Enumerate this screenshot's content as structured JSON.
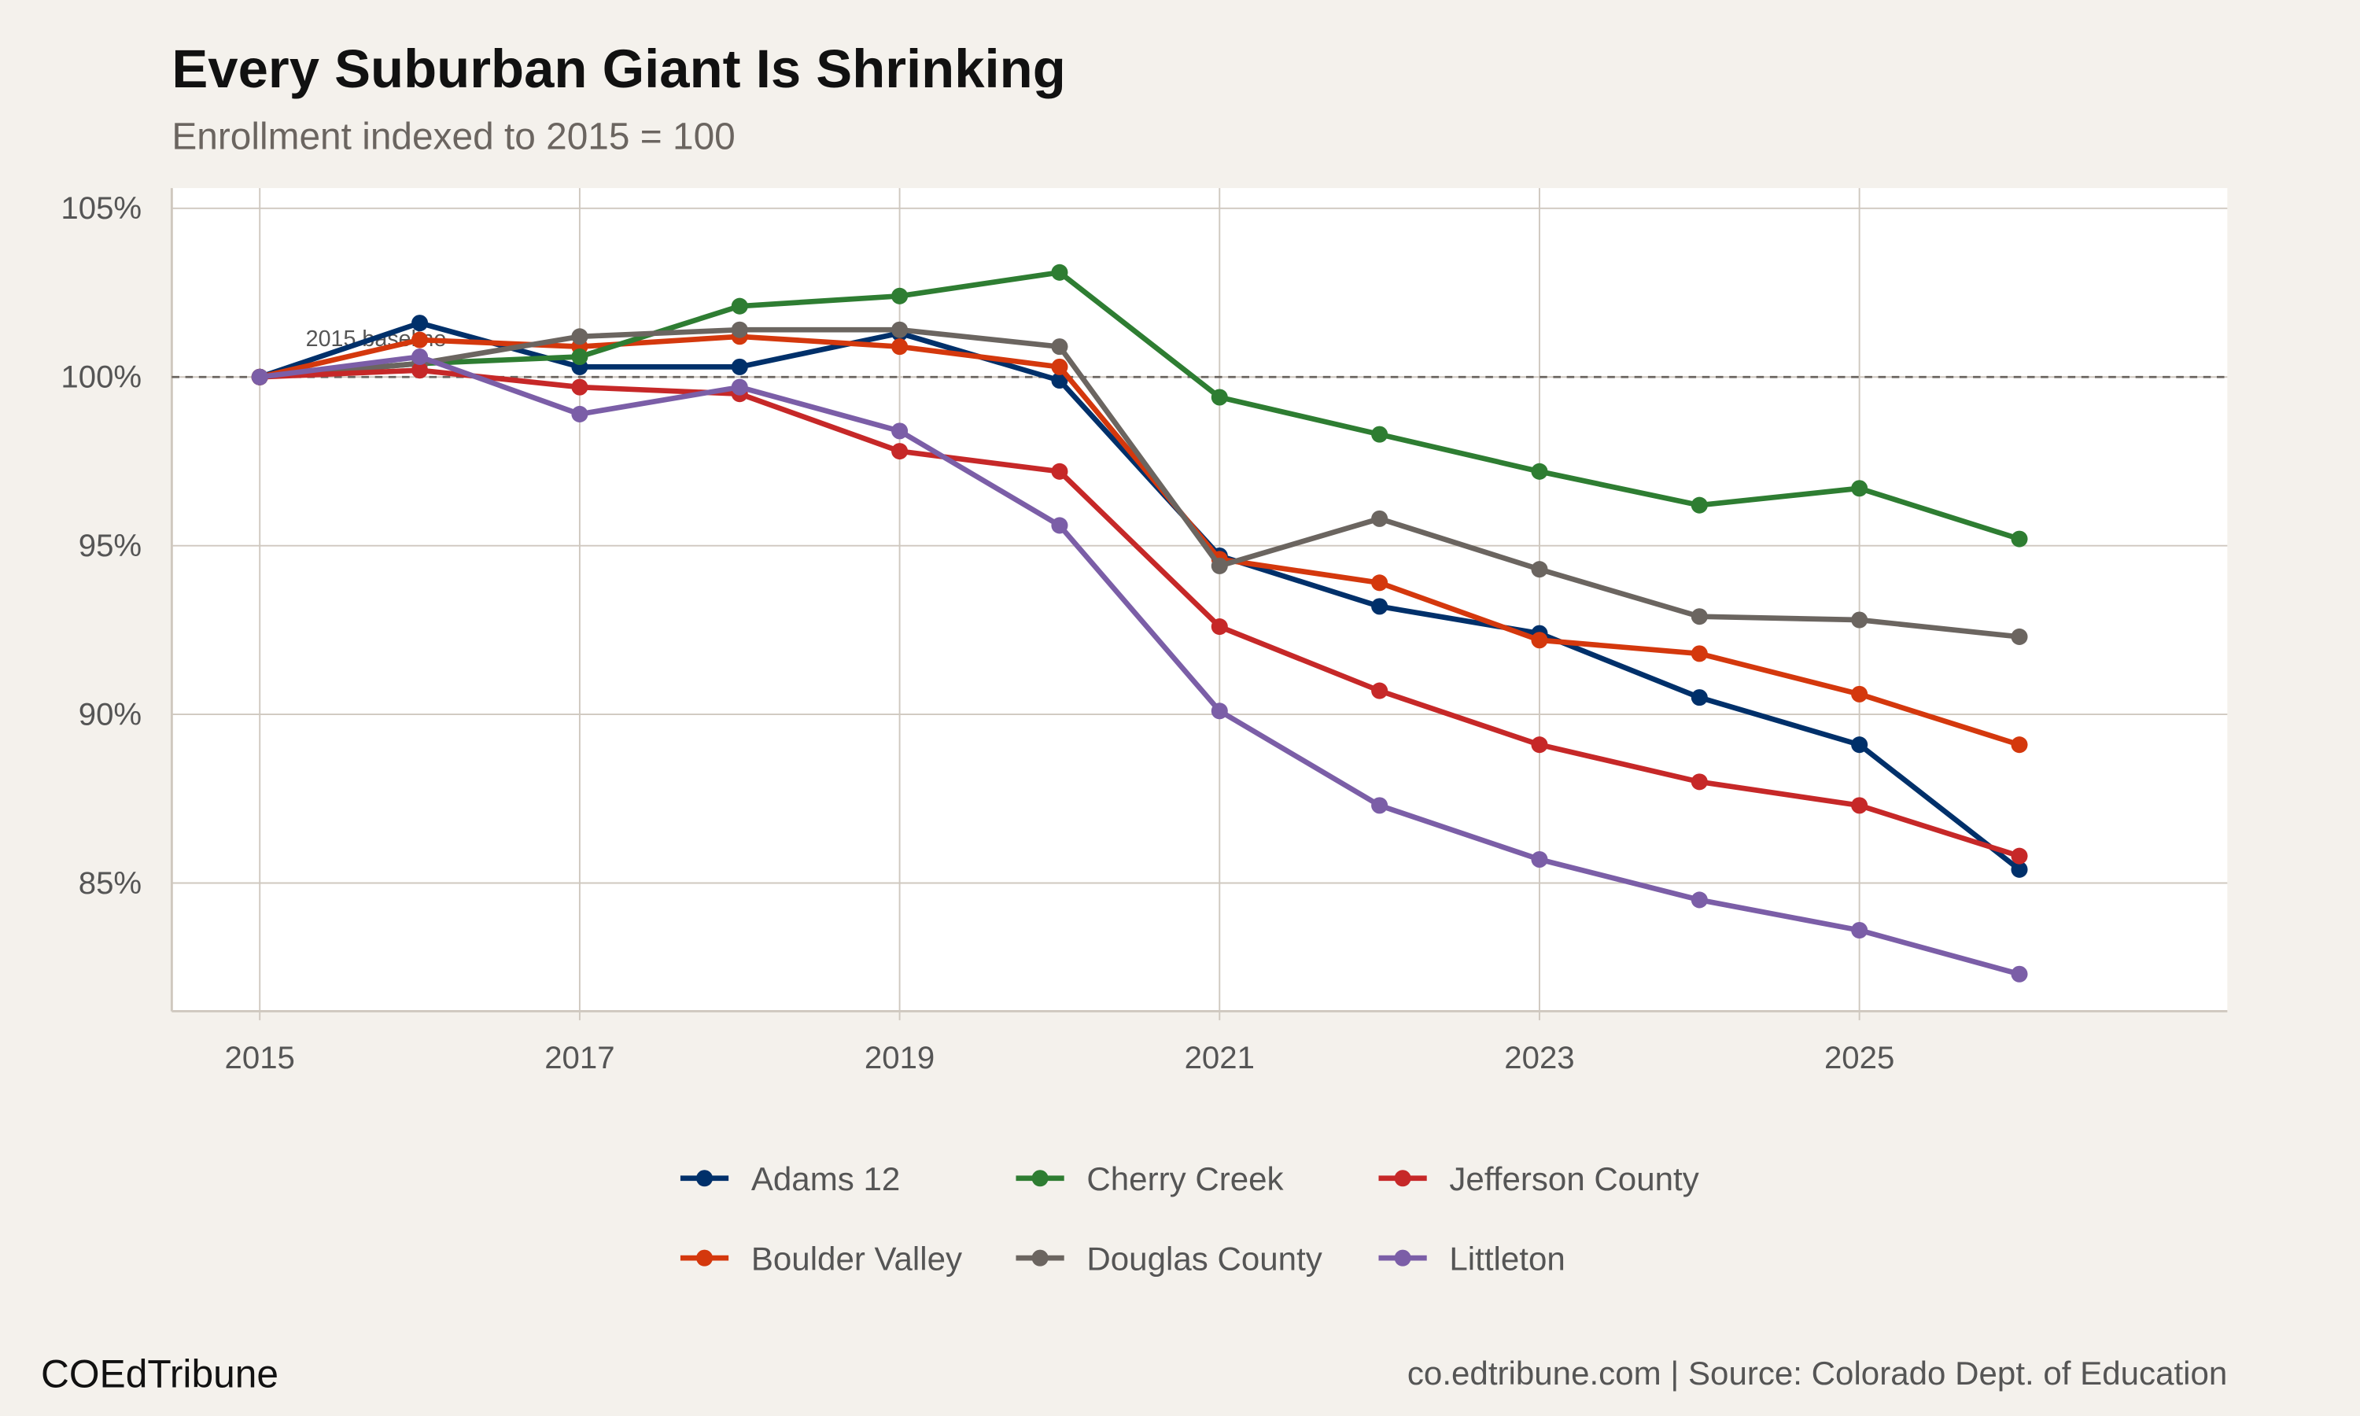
{
  "chart_data": {
    "type": "line",
    "title": "Every Suburban Giant Is Shrinking",
    "subtitle": "Enrollment indexed to 2015 = 100",
    "xlabel": "",
    "ylabel": "",
    "x": [
      2015,
      2016,
      2017,
      2018,
      2019,
      2020,
      2021,
      2022,
      2023,
      2024,
      2025,
      2026
    ],
    "xlim": [
      2014.45,
      2027.3
    ],
    "ylim": [
      81.2,
      105.6
    ],
    "x_ticks": [
      "2015",
      "2017",
      "2019",
      "2021",
      "2023",
      "2025"
    ],
    "y_ticks": [
      {
        "value": 85,
        "label": "85%"
      },
      {
        "value": 90,
        "label": "90%"
      },
      {
        "value": 95,
        "label": "95%"
      },
      {
        "value": 100,
        "label": "100%"
      },
      {
        "value": 105,
        "label": "105%"
      }
    ],
    "grid": true,
    "legend_position": "bottom",
    "reference_line": {
      "value": 100,
      "label": "2015 baseline",
      "color": "#6b6560",
      "style": "dashed"
    },
    "series": [
      {
        "name": "Adams 12",
        "color": "#00306a",
        "values": [
          100,
          101.6,
          100.3,
          100.3,
          101.3,
          99.9,
          94.7,
          93.2,
          92.4,
          90.5,
          89.1,
          85.4
        ]
      },
      {
        "name": "Boulder Valley",
        "color": "#d4380d",
        "values": [
          100,
          101.1,
          100.9,
          101.2,
          100.9,
          100.3,
          94.6,
          93.9,
          92.2,
          91.8,
          90.6,
          89.1
        ]
      },
      {
        "name": "Cherry Creek",
        "color": "#2e7d32",
        "values": [
          100,
          100.4,
          100.6,
          102.1,
          102.4,
          103.1,
          99.4,
          98.3,
          97.2,
          96.2,
          96.7,
          95.2
        ]
      },
      {
        "name": "Douglas County",
        "color": "#6b6560",
        "values": [
          100,
          100.4,
          101.2,
          101.4,
          101.4,
          100.9,
          94.4,
          95.8,
          94.3,
          92.9,
          92.8,
          92.3
        ]
      },
      {
        "name": "Jefferson County",
        "color": "#c62828",
        "values": [
          100,
          100.2,
          99.7,
          99.5,
          97.8,
          97.2,
          92.6,
          90.7,
          89.1,
          88.0,
          87.3,
          85.8
        ]
      },
      {
        "name": "Littleton",
        "color": "#7b5ea7",
        "values": [
          100,
          100.6,
          98.9,
          99.7,
          98.4,
          95.6,
          90.1,
          87.3,
          85.7,
          84.5,
          83.6,
          82.3
        ]
      }
    ]
  },
  "footer": {
    "brand": "COEdTribune",
    "source": "co.edtribune.com | Source: Colorado Dept. of Education"
  },
  "colors": {
    "background": "#f4f1ec",
    "plot_background": "#ffffff",
    "grid": "#cfc8bf"
  }
}
